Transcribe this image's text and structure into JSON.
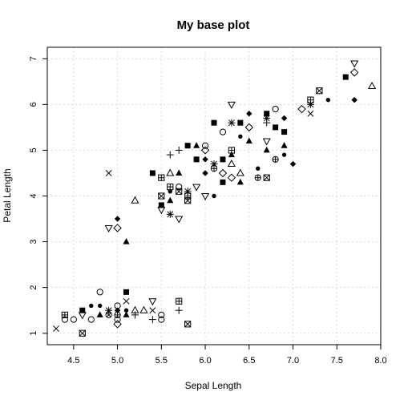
{
  "chart_data": {
    "type": "scatter",
    "title": "My base plot",
    "xlabel": "Sepal Length",
    "ylabel": "Petal Length",
    "xlim": [
      4.2,
      8.0
    ],
    "ylim": [
      0.75,
      7.25
    ],
    "xticks": [
      4.5,
      5.0,
      5.5,
      6.0,
      6.5,
      7.0,
      7.5,
      8.0
    ],
    "xtick_labels": [
      "4.5",
      "5.0",
      "5.5",
      "6.0",
      "6.5",
      "7.0",
      "7.5",
      "8.0"
    ],
    "yticks": [
      1,
      2,
      3,
      4,
      5,
      6,
      7
    ],
    "ytick_labels": [
      "1",
      "2",
      "3",
      "4",
      "5",
      "6",
      "7"
    ],
    "grid": true,
    "points": [
      {
        "x": 4.3,
        "y": 1.1,
        "shape": "x"
      },
      {
        "x": 4.4,
        "y": 1.3,
        "shape": "circle"
      },
      {
        "x": 4.4,
        "y": 1.4,
        "shape": "box-plus"
      },
      {
        "x": 4.5,
        "y": 1.3,
        "shape": "circle"
      },
      {
        "x": 4.6,
        "y": 1.0,
        "shape": "box-x"
      },
      {
        "x": 4.6,
        "y": 1.4,
        "shape": "triangle-down"
      },
      {
        "x": 4.6,
        "y": 1.5,
        "shape": "square"
      },
      {
        "x": 4.7,
        "y": 1.3,
        "shape": "circle"
      },
      {
        "x": 4.7,
        "y": 1.6,
        "shape": "dot"
      },
      {
        "x": 4.8,
        "y": 1.4,
        "shape": "triangle-filled"
      },
      {
        "x": 4.8,
        "y": 1.6,
        "shape": "dot"
      },
      {
        "x": 4.8,
        "y": 1.9,
        "shape": "circle"
      },
      {
        "x": 4.9,
        "y": 1.4,
        "shape": "circle-x"
      },
      {
        "x": 4.9,
        "y": 1.5,
        "shape": "star"
      },
      {
        "x": 5.0,
        "y": 1.2,
        "shape": "diamond"
      },
      {
        "x": 5.0,
        "y": 1.3,
        "shape": "circle"
      },
      {
        "x": 5.0,
        "y": 1.4,
        "shape": "circle-plus"
      },
      {
        "x": 5.0,
        "y": 1.5,
        "shape": "diamond-filled"
      },
      {
        "x": 5.0,
        "y": 1.6,
        "shape": "circle"
      },
      {
        "x": 5.1,
        "y": 1.4,
        "shape": "triangle-filled"
      },
      {
        "x": 5.1,
        "y": 1.5,
        "shape": "dot"
      },
      {
        "x": 5.1,
        "y": 1.7,
        "shape": "x"
      },
      {
        "x": 5.1,
        "y": 1.9,
        "shape": "square"
      },
      {
        "x": 5.2,
        "y": 1.4,
        "shape": "plus"
      },
      {
        "x": 5.2,
        "y": 1.5,
        "shape": "triangle"
      },
      {
        "x": 5.3,
        "y": 1.5,
        "shape": "triangle"
      },
      {
        "x": 5.4,
        "y": 1.3,
        "shape": "plus"
      },
      {
        "x": 5.4,
        "y": 1.5,
        "shape": "x"
      },
      {
        "x": 5.4,
        "y": 1.7,
        "shape": "triangle-down"
      },
      {
        "x": 5.5,
        "y": 1.3,
        "shape": "circle"
      },
      {
        "x": 5.5,
        "y": 1.4,
        "shape": "circle"
      },
      {
        "x": 5.7,
        "y": 1.5,
        "shape": "plus"
      },
      {
        "x": 5.7,
        "y": 1.7,
        "shape": "box-plus"
      },
      {
        "x": 5.8,
        "y": 1.2,
        "shape": "box-x"
      },
      {
        "x": 4.9,
        "y": 3.3,
        "shape": "triangle-down"
      },
      {
        "x": 4.9,
        "y": 4.5,
        "shape": "x"
      },
      {
        "x": 5.0,
        "y": 3.3,
        "shape": "diamond"
      },
      {
        "x": 5.0,
        "y": 3.5,
        "shape": "diamond-filled"
      },
      {
        "x": 5.1,
        "y": 3.0,
        "shape": "triangle-filled"
      },
      {
        "x": 5.2,
        "y": 3.9,
        "shape": "triangle"
      },
      {
        "x": 5.4,
        "y": 4.5,
        "shape": "square"
      },
      {
        "x": 5.5,
        "y": 3.7,
        "shape": "triangle-down"
      },
      {
        "x": 5.5,
        "y": 3.8,
        "shape": "square"
      },
      {
        "x": 5.5,
        "y": 4.0,
        "shape": "box-x"
      },
      {
        "x": 5.5,
        "y": 4.4,
        "shape": "box-plus"
      },
      {
        "x": 5.6,
        "y": 3.6,
        "shape": "star"
      },
      {
        "x": 5.6,
        "y": 3.9,
        "shape": "triangle-filled"
      },
      {
        "x": 5.6,
        "y": 4.1,
        "shape": "dot"
      },
      {
        "x": 5.6,
        "y": 4.2,
        "shape": "box-plus"
      },
      {
        "x": 5.6,
        "y": 4.5,
        "shape": "triangle"
      },
      {
        "x": 5.6,
        "y": 4.9,
        "shape": "plus"
      },
      {
        "x": 5.7,
        "y": 3.5,
        "shape": "triangle-down"
      },
      {
        "x": 5.7,
        "y": 4.1,
        "shape": "box-x"
      },
      {
        "x": 5.7,
        "y": 4.2,
        "shape": "circle"
      },
      {
        "x": 5.7,
        "y": 4.5,
        "shape": "triangle-filled"
      },
      {
        "x": 5.7,
        "y": 5.0,
        "shape": "plus"
      },
      {
        "x": 5.8,
        "y": 3.9,
        "shape": "box-x"
      },
      {
        "x": 5.8,
        "y": 4.0,
        "shape": "box-plus"
      },
      {
        "x": 5.8,
        "y": 4.1,
        "shape": "star"
      },
      {
        "x": 5.8,
        "y": 5.1,
        "shape": "square"
      },
      {
        "x": 5.9,
        "y": 4.2,
        "shape": "triangle-down"
      },
      {
        "x": 5.9,
        "y": 4.8,
        "shape": "square"
      },
      {
        "x": 5.9,
        "y": 5.1,
        "shape": "triangle-filled"
      },
      {
        "x": 6.0,
        "y": 4.0,
        "shape": "triangle-down"
      },
      {
        "x": 6.0,
        "y": 4.5,
        "shape": "diamond-filled"
      },
      {
        "x": 6.0,
        "y": 4.8,
        "shape": "diamond-filled"
      },
      {
        "x": 6.0,
        "y": 5.0,
        "shape": "diamond"
      },
      {
        "x": 6.0,
        "y": 5.1,
        "shape": "circle"
      },
      {
        "x": 6.1,
        "y": 4.0,
        "shape": "dot"
      },
      {
        "x": 6.1,
        "y": 4.6,
        "shape": "circle-plus"
      },
      {
        "x": 6.1,
        "y": 4.7,
        "shape": "star"
      },
      {
        "x": 6.1,
        "y": 5.6,
        "shape": "square"
      },
      {
        "x": 6.2,
        "y": 4.3,
        "shape": "square"
      },
      {
        "x": 6.2,
        "y": 4.5,
        "shape": "diamond"
      },
      {
        "x": 6.2,
        "y": 4.8,
        "shape": "square"
      },
      {
        "x": 6.2,
        "y": 5.4,
        "shape": "circle"
      },
      {
        "x": 6.3,
        "y": 4.4,
        "shape": "diamond"
      },
      {
        "x": 6.3,
        "y": 4.7,
        "shape": "triangle"
      },
      {
        "x": 6.3,
        "y": 4.9,
        "shape": "triangle-filled"
      },
      {
        "x": 6.3,
        "y": 5.0,
        "shape": "box-plus"
      },
      {
        "x": 6.3,
        "y": 5.6,
        "shape": "star"
      },
      {
        "x": 6.3,
        "y": 6.0,
        "shape": "triangle-down"
      },
      {
        "x": 6.4,
        "y": 4.3,
        "shape": "triangle-filled"
      },
      {
        "x": 6.4,
        "y": 4.5,
        "shape": "triangle"
      },
      {
        "x": 6.4,
        "y": 5.3,
        "shape": "dot"
      },
      {
        "x": 6.4,
        "y": 5.6,
        "shape": "square"
      },
      {
        "x": 6.5,
        "y": 5.2,
        "shape": "triangle-filled"
      },
      {
        "x": 6.5,
        "y": 5.5,
        "shape": "diamond"
      },
      {
        "x": 6.5,
        "y": 5.8,
        "shape": "diamond-filled"
      },
      {
        "x": 6.6,
        "y": 4.4,
        "shape": "circle-plus"
      },
      {
        "x": 6.6,
        "y": 4.6,
        "shape": "dot"
      },
      {
        "x": 6.7,
        "y": 4.4,
        "shape": "box-x"
      },
      {
        "x": 6.7,
        "y": 5.0,
        "shape": "triangle-filled"
      },
      {
        "x": 6.7,
        "y": 5.2,
        "shape": "triangle-down"
      },
      {
        "x": 6.7,
        "y": 5.6,
        "shape": "plus"
      },
      {
        "x": 6.7,
        "y": 5.7,
        "shape": "star"
      },
      {
        "x": 6.7,
        "y": 5.8,
        "shape": "square"
      },
      {
        "x": 6.8,
        "y": 4.8,
        "shape": "circle-plus"
      },
      {
        "x": 6.8,
        "y": 5.5,
        "shape": "square"
      },
      {
        "x": 6.8,
        "y": 5.9,
        "shape": "circle"
      },
      {
        "x": 6.9,
        "y": 4.9,
        "shape": "dot"
      },
      {
        "x": 6.9,
        "y": 5.1,
        "shape": "triangle-filled"
      },
      {
        "x": 6.9,
        "y": 5.4,
        "shape": "square"
      },
      {
        "x": 6.9,
        "y": 5.7,
        "shape": "diamond-filled"
      },
      {
        "x": 7.0,
        "y": 4.7,
        "shape": "diamond-filled"
      },
      {
        "x": 7.1,
        "y": 5.9,
        "shape": "diamond"
      },
      {
        "x": 7.2,
        "y": 5.8,
        "shape": "x"
      },
      {
        "x": 7.2,
        "y": 6.0,
        "shape": "star"
      },
      {
        "x": 7.2,
        "y": 6.1,
        "shape": "box-plus"
      },
      {
        "x": 7.3,
        "y": 6.3,
        "shape": "box-x"
      },
      {
        "x": 7.4,
        "y": 6.1,
        "shape": "dot"
      },
      {
        "x": 7.6,
        "y": 6.6,
        "shape": "square"
      },
      {
        "x": 7.7,
        "y": 6.1,
        "shape": "diamond-filled"
      },
      {
        "x": 7.7,
        "y": 6.7,
        "shape": "diamond"
      },
      {
        "x": 7.7,
        "y": 6.9,
        "shape": "triangle-down"
      },
      {
        "x": 7.9,
        "y": 6.4,
        "shape": "triangle"
      }
    ]
  }
}
